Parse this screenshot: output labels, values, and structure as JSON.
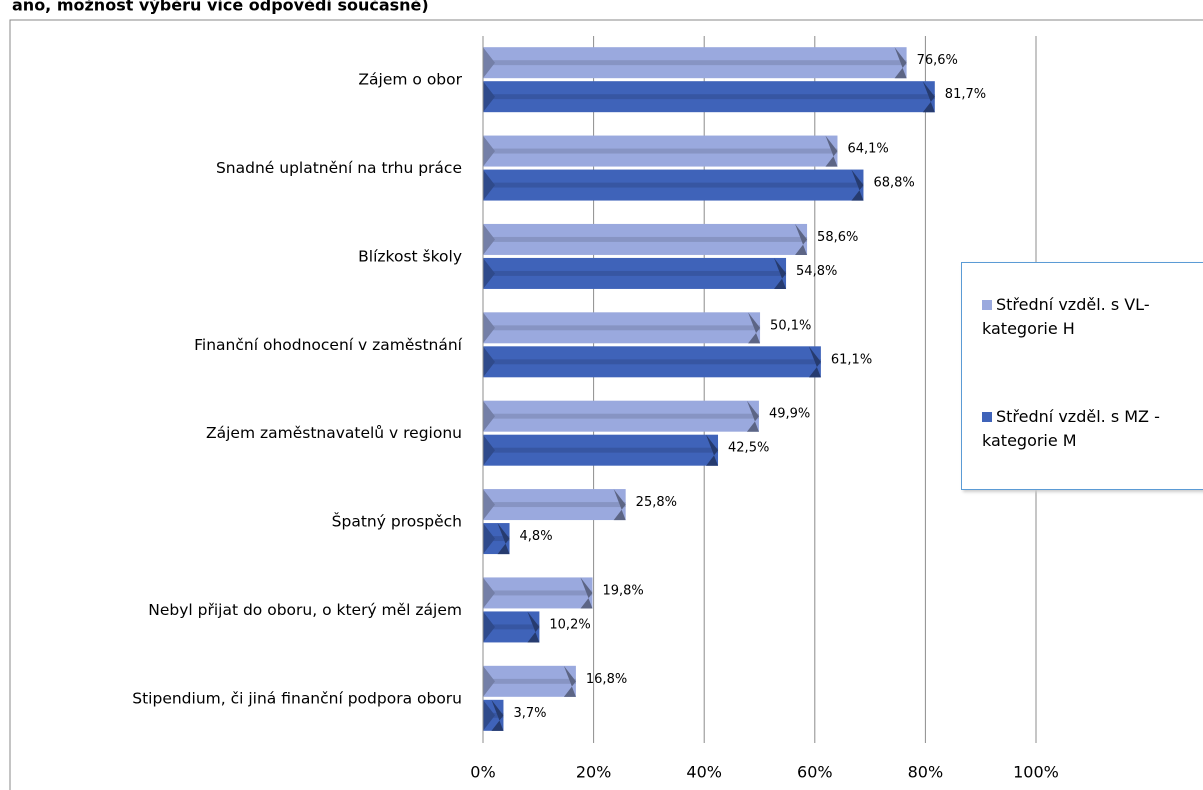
{
  "chart_data": {
    "type": "bar",
    "orientation": "horizontal",
    "title": "ano, možnost výběru více odpovědí současně)",
    "categories": [
      "Zájem o obor",
      "Snadné uplatnění na trhu práce",
      "Blízkost školy",
      "Finanční ohodnocení v zaměstnání",
      "Zájem zaměstnavatelů v regionu",
      "Špatný prospěch",
      "Nebyl přijat do oboru, o který měl zájem",
      "Stipendium, či jiná finanční podpora oboru"
    ],
    "series": [
      {
        "name": "Střední vzděl. s VL-kategorie H",
        "color": "#9aa9de",
        "values": [
          76.6,
          64.1,
          58.6,
          50.1,
          49.9,
          25.8,
          19.8,
          16.8
        ],
        "value_labels": [
          "76,6%",
          "64,1%",
          "58,6%",
          "50,1%",
          "49,9%",
          "25,8%",
          "19,8%",
          "16,8%"
        ]
      },
      {
        "name": "Střední vzděl. s MZ - kategorie M",
        "color": "#3f63b9",
        "values": [
          81.7,
          68.8,
          54.8,
          61.1,
          42.5,
          4.8,
          10.2,
          3.7
        ],
        "value_labels": [
          "81,7%",
          "68,8%",
          "54,8%",
          "61,1%",
          "42,5%",
          "4,8%",
          "10,2%",
          "3,7%"
        ]
      }
    ],
    "xlim": [
      0,
      100
    ],
    "xticks": [
      {
        "value": 0,
        "label": "0%"
      },
      {
        "value": 20,
        "label": "20%"
      },
      {
        "value": 40,
        "label": "40%"
      },
      {
        "value": 60,
        "label": "60%"
      },
      {
        "value": 80,
        "label": "80%"
      },
      {
        "value": 100,
        "label": "100%"
      }
    ],
    "grid": true,
    "legend": "right"
  }
}
